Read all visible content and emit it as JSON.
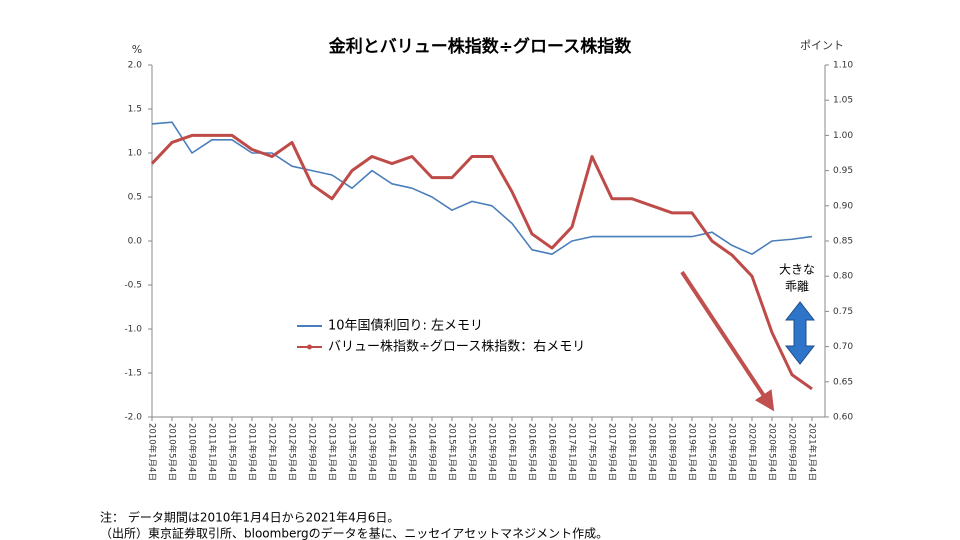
{
  "chart_data": {
    "type": "line",
    "title": "金利とバリュー株指数÷グロース株指数",
    "y_unit": "%",
    "y2_unit": "ポイント",
    "annotation": [
      "大きな",
      "乖離"
    ],
    "notes": [
      "注：  データ期間は2010年1月4日から2021年4月6日。",
      "（出所）東京証券取引所、bloombergのデータを基に、ニッセイアセットマネジメント作成。"
    ],
    "categories": [
      "2010年1月4日",
      "2010年5月4日",
      "2010年9月4日",
      "2011年1月4日",
      "2011年5月4日",
      "2011年9月4日",
      "2012年1月4日",
      "2012年5月4日",
      "2012年9月4日",
      "2013年1月4日",
      "2013年5月4日",
      "2013年9月4日",
      "2014年1月4日",
      "2014年5月4日",
      "2014年9月4日",
      "2015年1月4日",
      "2015年5月4日",
      "2015年9月4日",
      "2016年1月4日",
      "2016年5月4日",
      "2016年9月4日",
      "2017年1月4日",
      "2017年5月4日",
      "2017年9月4日",
      "2018年1月4日",
      "2018年5月4日",
      "2018年9月4日",
      "2019年1月4日",
      "2019年5月4日",
      "2019年9月4日",
      "2020年1月4日",
      "2020年5月4日",
      "2020年9月4日",
      "2021年1月4日"
    ],
    "series": [
      {
        "name": "10年国債利回り: 左メモリ",
        "color": "#4a7ebb",
        "axis": "y",
        "values": [
          1.33,
          1.35,
          1.0,
          1.15,
          1.15,
          1.0,
          1.0,
          0.85,
          0.8,
          0.75,
          0.6,
          0.8,
          0.65,
          0.6,
          0.5,
          0.35,
          0.45,
          0.4,
          0.2,
          -0.1,
          -0.15,
          0.0,
          0.05,
          0.05,
          0.05,
          0.05,
          0.05,
          0.05,
          0.1,
          -0.05,
          -0.15,
          0.0,
          0.02,
          0.05
        ]
      },
      {
        "name": "バリュー株指数÷グロース株指数：右メモリ",
        "color": "#be4b48",
        "axis": "y2",
        "values": [
          0.96,
          0.99,
          1.0,
          1.0,
          1.0,
          0.98,
          0.97,
          0.99,
          0.93,
          0.91,
          0.95,
          0.97,
          0.96,
          0.97,
          0.94,
          0.94,
          0.97,
          0.97,
          0.92,
          0.86,
          0.84,
          0.87,
          0.97,
          0.91,
          0.91,
          0.9,
          0.89,
          0.89,
          0.85,
          0.83,
          0.8,
          0.72,
          0.66,
          0.64
        ]
      }
    ],
    "ylim": [
      -2,
      2
    ],
    "yticks": [
      {
        "value": 2,
        "label": "2.0"
      },
      1.5,
      {
        "value": 1,
        "label": "1.0"
      },
      0.5,
      {
        "value": 0,
        "label": "0.0"
      },
      -0.5,
      {
        "value": -1,
        "label": "-1.0"
      },
      -1.5,
      {
        "value": -2,
        "label": "-2.0"
      }
    ],
    "y2lim": [
      0.6,
      1.1
    ],
    "y2ticks": [
      {
        "value": 1.1,
        "label": "1.10"
      },
      1.05,
      {
        "value": 1,
        "label": "1.00"
      },
      0.95,
      {
        "value": 0.9,
        "label": "0.90"
      },
      0.85,
      {
        "value": 0.8,
        "label": "0.80"
      },
      0.75,
      {
        "value": 0.7,
        "label": "0.70"
      },
      0.65,
      {
        "value": 0.6,
        "label": "0.60"
      }
    ],
    "grid": false
  }
}
